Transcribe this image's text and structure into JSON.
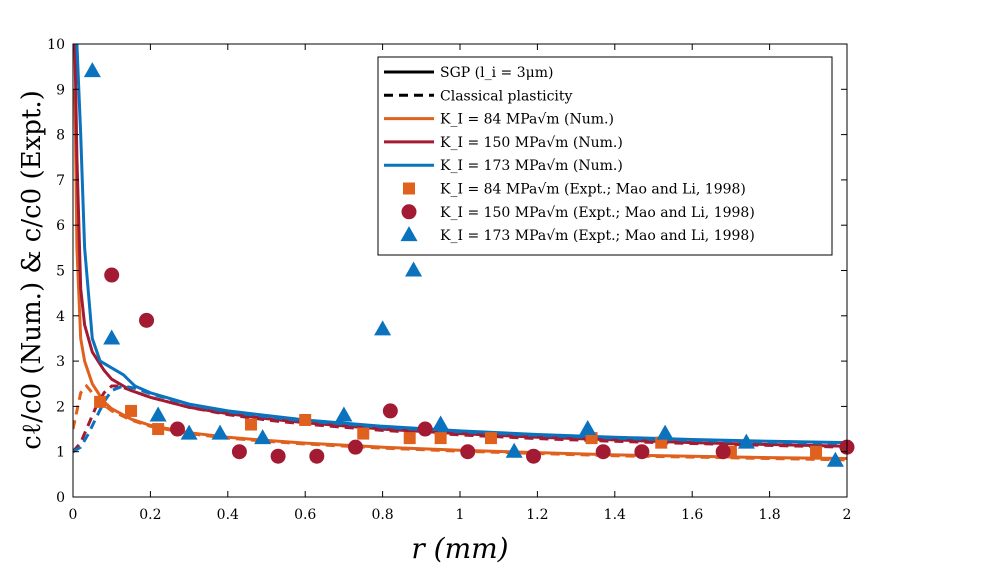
{
  "chart_data": {
    "type": "line",
    "xlabel": "r (mm)",
    "ylabel": "cℓ/c0 (Num.) & c/c0 (Expt.)",
    "xlim": [
      0,
      2
    ],
    "ylim": [
      0,
      10
    ],
    "xticks": [
      "0",
      "0.2",
      "0.4",
      "0.6",
      "0.8",
      "1",
      "1.2",
      "1.4",
      "1.6",
      "1.8",
      "2"
    ],
    "yticks": [
      "0",
      "1",
      "2",
      "3",
      "4",
      "5",
      "6",
      "7",
      "8",
      "9",
      "10"
    ],
    "colors": {
      "k84": "#e0601e",
      "k150": "#a31a33",
      "k173": "#0b72bd"
    },
    "legend": [
      {
        "label": "SGP (l_i = 3μm)"
      },
      {
        "label": "Classical plasticity"
      },
      {
        "label": "K_I = 84 MPa√m (Num.)"
      },
      {
        "label": "K_I = 150 MPa√m (Num.)"
      },
      {
        "label": "K_I = 173 MPa√m (Num.)"
      },
      {
        "label": "K_I = 84 MPa√m (Expt.; Mao and Li, 1998)"
      },
      {
        "label": "K_I = 150 MPa√m (Expt.; Mao and Li, 1998)"
      },
      {
        "label": "K_I = 173 MPa√m (Expt.; Mao and Li, 1998)"
      }
    ],
    "series": [
      {
        "name": "K_I = 84 MPa√m SGP (Num.)",
        "style": "solid",
        "color": "k84",
        "x": [
          0.005,
          0.01,
          0.02,
          0.03,
          0.05,
          0.08,
          0.1,
          0.15,
          0.2,
          0.3,
          0.4,
          0.5,
          0.6,
          0.8,
          1.0,
          1.2,
          1.4,
          1.6,
          1.8,
          2.0
        ],
        "y": [
          9.0,
          5.5,
          3.5,
          3.0,
          2.5,
          2.1,
          1.95,
          1.72,
          1.58,
          1.42,
          1.32,
          1.25,
          1.19,
          1.1,
          1.03,
          0.98,
          0.93,
          0.9,
          0.87,
          0.85
        ]
      },
      {
        "name": "K_I = 150 MPa√m SGP (Num.)",
        "style": "solid",
        "color": "k150",
        "x": [
          0.005,
          0.01,
          0.02,
          0.03,
          0.05,
          0.08,
          0.1,
          0.15,
          0.2,
          0.3,
          0.4,
          0.5,
          0.6,
          0.8,
          1.0,
          1.2,
          1.4,
          1.6,
          1.8,
          2.0
        ],
        "y": [
          10.0,
          7.5,
          4.6,
          3.8,
          3.2,
          2.8,
          2.6,
          2.35,
          2.2,
          1.98,
          1.84,
          1.73,
          1.64,
          1.5,
          1.4,
          1.32,
          1.26,
          1.2,
          1.16,
          1.12
        ]
      },
      {
        "name": "K_I = 173 MPa√m SGP (Num.)",
        "style": "solid",
        "color": "k173",
        "x": [
          0.005,
          0.01,
          0.02,
          0.03,
          0.05,
          0.07,
          0.1,
          0.13,
          0.16,
          0.2,
          0.3,
          0.4,
          0.5,
          0.6,
          0.8,
          1.0,
          1.2,
          1.4,
          1.6,
          1.8,
          2.0
        ],
        "y": [
          10.0,
          10.0,
          8.0,
          5.5,
          3.5,
          3.0,
          2.85,
          2.7,
          2.45,
          2.3,
          2.05,
          1.9,
          1.8,
          1.7,
          1.56,
          1.46,
          1.38,
          1.32,
          1.27,
          1.23,
          1.2
        ]
      },
      {
        "name": "K_I = 84 MPa√m Classical (Num.)",
        "style": "dashed",
        "color": "k84",
        "x": [
          0.0,
          0.01,
          0.02,
          0.035,
          0.05,
          0.07,
          0.1,
          0.15,
          0.2,
          0.3,
          0.4,
          0.5,
          0.6,
          0.8,
          1.0,
          1.2,
          1.4,
          1.6,
          1.8,
          2.0
        ],
        "y": [
          1.5,
          1.9,
          2.3,
          2.45,
          2.3,
          2.1,
          1.9,
          1.7,
          1.56,
          1.4,
          1.3,
          1.23,
          1.17,
          1.08,
          1.01,
          0.96,
          0.91,
          0.88,
          0.85,
          0.82
        ]
      },
      {
        "name": "K_I = 150 MPa√m Classical (Num.)",
        "style": "dashed",
        "color": "k150",
        "x": [
          0.0,
          0.02,
          0.04,
          0.06,
          0.08,
          0.1,
          0.12,
          0.15,
          0.2,
          0.3,
          0.4,
          0.5,
          0.6,
          0.8,
          1.0,
          1.2,
          1.4,
          1.6,
          1.8,
          2.0
        ],
        "y": [
          1.0,
          1.2,
          1.6,
          2.0,
          2.3,
          2.45,
          2.45,
          2.35,
          2.2,
          1.98,
          1.82,
          1.7,
          1.61,
          1.47,
          1.37,
          1.29,
          1.23,
          1.18,
          1.14,
          1.1
        ]
      },
      {
        "name": "K_I = 173 MPa√m Classical (Num.)",
        "style": "dashed",
        "color": "k173",
        "x": [
          0.0,
          0.02,
          0.04,
          0.06,
          0.08,
          0.1,
          0.13,
          0.16,
          0.2,
          0.3,
          0.4,
          0.5,
          0.6,
          0.8,
          1.0,
          1.2,
          1.4,
          1.6,
          1.8,
          2.0
        ],
        "y": [
          1.0,
          1.1,
          1.4,
          1.75,
          2.1,
          2.35,
          2.45,
          2.4,
          2.28,
          2.04,
          1.88,
          1.77,
          1.68,
          1.54,
          1.44,
          1.36,
          1.3,
          1.25,
          1.21,
          1.18
        ]
      }
    ],
    "scatter": [
      {
        "name": "K_I = 84 MPa√m (Expt.; Mao and Li, 1998)",
        "marker": "square",
        "color": "k84",
        "points": [
          [
            0.07,
            2.1
          ],
          [
            0.15,
            1.9
          ],
          [
            0.22,
            1.5
          ],
          [
            0.46,
            1.6
          ],
          [
            0.6,
            1.7
          ],
          [
            0.75,
            1.4
          ],
          [
            0.87,
            1.3
          ],
          [
            0.95,
            1.3
          ],
          [
            1.08,
            1.3
          ],
          [
            1.34,
            1.3
          ],
          [
            1.52,
            1.2
          ],
          [
            1.7,
            1.0
          ],
          [
            1.92,
            1.0
          ]
        ]
      },
      {
        "name": "K_I = 150 MPa√m (Expt.; Mao and Li, 1998)",
        "marker": "circle",
        "color": "k150",
        "points": [
          [
            0.1,
            4.9
          ],
          [
            0.19,
            3.9
          ],
          [
            0.27,
            1.5
          ],
          [
            0.43,
            1.0
          ],
          [
            0.53,
            0.9
          ],
          [
            0.63,
            0.9
          ],
          [
            0.73,
            1.1
          ],
          [
            0.82,
            1.9
          ],
          [
            0.91,
            1.5
          ],
          [
            1.02,
            1.0
          ],
          [
            1.19,
            0.9
          ],
          [
            1.37,
            1.0
          ],
          [
            1.47,
            1.0
          ],
          [
            1.68,
            1.0
          ],
          [
            2.0,
            1.1
          ]
        ]
      },
      {
        "name": "K_I = 173 MPa√m (Expt.; Mao and Li, 1998)",
        "marker": "triangle",
        "color": "k173",
        "points": [
          [
            0.05,
            9.4
          ],
          [
            0.1,
            3.5
          ],
          [
            0.22,
            1.8
          ],
          [
            0.3,
            1.4
          ],
          [
            0.38,
            1.4
          ],
          [
            0.49,
            1.3
          ],
          [
            0.7,
            1.8
          ],
          [
            0.8,
            3.7
          ],
          [
            0.88,
            5.0
          ],
          [
            0.95,
            1.6
          ],
          [
            1.14,
            1.0
          ],
          [
            1.33,
            1.5
          ],
          [
            1.53,
            1.4
          ],
          [
            1.74,
            1.2
          ],
          [
            1.97,
            0.8
          ]
        ]
      }
    ]
  }
}
